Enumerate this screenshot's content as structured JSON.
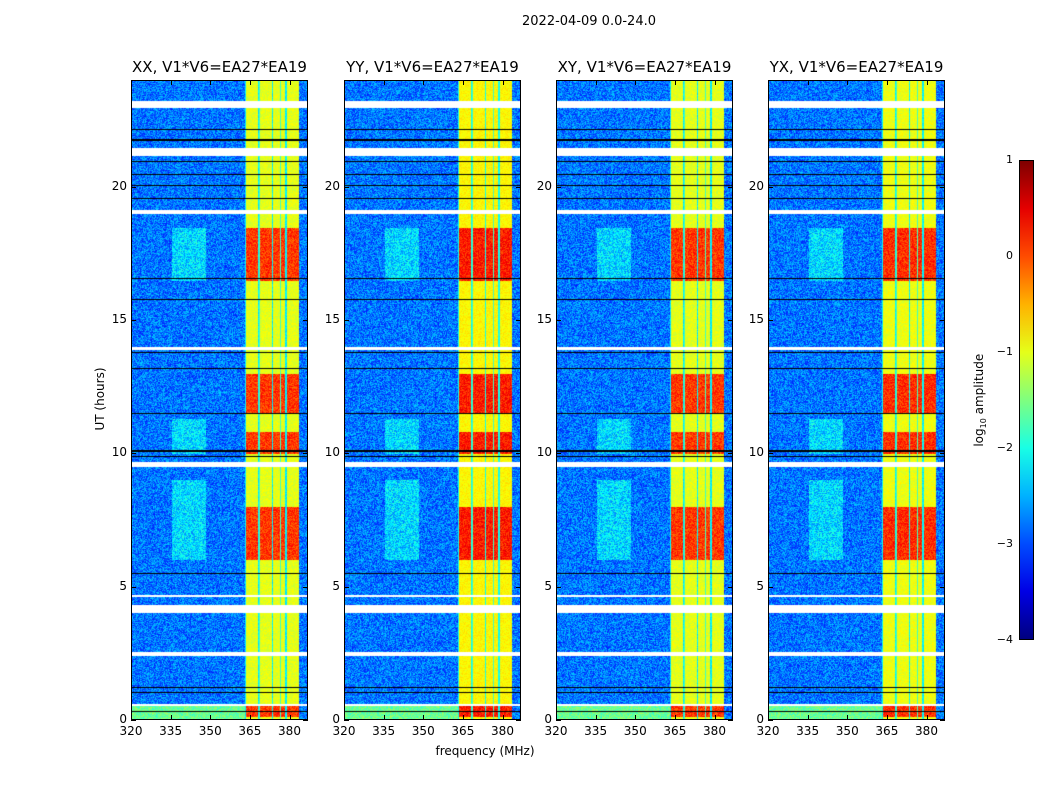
{
  "suptitle": "2022-04-09 0.0-24.0",
  "chart_data": {
    "type": "heatmap",
    "panels": [
      {
        "title": "XX, V1*V6=EA27*EA19"
      },
      {
        "title": "YY, V1*V6=EA27*EA19"
      },
      {
        "title": "XY, V1*V6=EA27*EA19"
      },
      {
        "title": "YX, V1*V6=EA27*EA19"
      }
    ],
    "xlabel": "frequency (MHz)",
    "ylabel": "UT (hours)",
    "xlim": [
      320,
      387
    ],
    "ylim": [
      0,
      24
    ],
    "xticks": [
      "320",
      "335",
      "350",
      "365",
      "380"
    ],
    "yticks": [
      "0",
      "5",
      "10",
      "15",
      "20"
    ],
    "colorbar": {
      "label": "log10 amplitude",
      "label_main": "log",
      "label_sub": "10",
      "label_rest": " amplitude",
      "range": [
        -4,
        1
      ],
      "ticks": [
        "1",
        "0",
        "−1",
        "−2",
        "−3",
        "−4"
      ],
      "colormap": "jet"
    },
    "background_level": -2.8,
    "rfi_band_mhz": [
      362.5,
      383
    ],
    "rfi_band_level": -1.0,
    "strong_rfi_hours": [
      [
        0.1,
        0.5
      ],
      [
        6.0,
        8.0
      ],
      [
        10.0,
        10.8
      ],
      [
        11.5,
        13.0
      ],
      [
        16.5,
        18.5
      ]
    ],
    "flagged_hours": [
      [
        0.5,
        0.6
      ],
      [
        2.4,
        2.55
      ],
      [
        4.0,
        4.3
      ],
      [
        4.6,
        4.7
      ],
      [
        9.5,
        9.7
      ],
      [
        13.9,
        14.0
      ],
      [
        19.0,
        19.15
      ],
      [
        21.2,
        21.5
      ],
      [
        23.0,
        23.25
      ]
    ],
    "black_lines_hours": [
      0.3,
      1.0,
      1.2,
      5.5,
      9.9,
      10.1,
      11.5,
      13.2,
      13.8,
      15.8,
      16.6,
      19.6,
      20.1,
      20.5,
      21.0,
      21.8,
      22.2
    ]
  }
}
